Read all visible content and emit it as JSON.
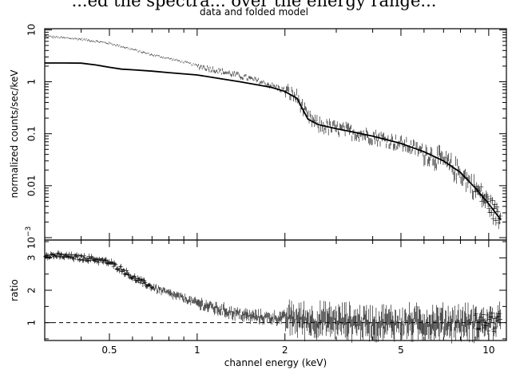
{
  "caption_fragment": "...ed the spectra... over the energy range...",
  "chart_data": [
    {
      "type": "line",
      "panel": "upper",
      "title": "data and folded model",
      "xlabel": "",
      "ylabel": "normalized counts/sec/keV",
      "xscale": "log",
      "yscale": "log",
      "xlim": [
        0.3,
        11.5
      ],
      "ylim": [
        0.0009,
        10.5
      ],
      "yticks": [
        {
          "v": 0.001,
          "label": "10",
          "exp": "−3"
        },
        {
          "v": 0.01,
          "label": "0.01"
        },
        {
          "v": 0.1,
          "label": "0.1"
        },
        {
          "v": 1,
          "label": "1"
        },
        {
          "v": 10,
          "label": "10"
        }
      ],
      "series": [
        {
          "kind": "data",
          "points": [
            [
              0.3,
              7.5
            ],
            [
              0.35,
              7.0
            ],
            [
              0.4,
              6.6
            ],
            [
              0.45,
              6.0
            ],
            [
              0.5,
              5.5
            ],
            [
              0.55,
              4.8
            ],
            [
              0.6,
              4.2
            ],
            [
              0.7,
              3.3
            ],
            [
              0.8,
              2.8
            ],
            [
              0.9,
              2.4
            ],
            [
              1.0,
              2.05
            ],
            [
              1.2,
              1.6
            ],
            [
              1.4,
              1.3
            ],
            [
              1.6,
              1.05
            ],
            [
              1.8,
              0.85
            ],
            [
              2.0,
              0.68
            ],
            [
              2.2,
              0.5
            ],
            [
              2.4,
              0.2
            ],
            [
              2.6,
              0.15
            ],
            [
              3.0,
              0.125
            ],
            [
              3.5,
              0.105
            ],
            [
              4.0,
              0.09
            ],
            [
              5.0,
              0.065
            ],
            [
              6.0,
              0.045
            ],
            [
              7.0,
              0.03
            ],
            [
              8.0,
              0.018
            ],
            [
              9.0,
              0.009
            ],
            [
              10.0,
              0.0045
            ],
            [
              11.0,
              0.0022
            ]
          ]
        },
        {
          "kind": "model",
          "points": [
            [
              0.3,
              2.3
            ],
            [
              0.35,
              2.3
            ],
            [
              0.4,
              2.28
            ],
            [
              0.45,
              2.1
            ],
            [
              0.5,
              1.9
            ],
            [
              0.55,
              1.75
            ],
            [
              0.6,
              1.7
            ],
            [
              0.7,
              1.6
            ],
            [
              0.8,
              1.5
            ],
            [
              1.0,
              1.35
            ],
            [
              1.2,
              1.15
            ],
            [
              1.4,
              1.0
            ],
            [
              1.6,
              0.88
            ],
            [
              1.8,
              0.78
            ],
            [
              2.0,
              0.65
            ],
            [
              2.2,
              0.48
            ],
            [
              2.4,
              0.19
            ],
            [
              2.6,
              0.15
            ],
            [
              3.0,
              0.125
            ],
            [
              3.5,
              0.105
            ],
            [
              4.0,
              0.09
            ],
            [
              5.0,
              0.065
            ],
            [
              6.0,
              0.045
            ],
            [
              7.0,
              0.03
            ],
            [
              8.0,
              0.018
            ],
            [
              9.0,
              0.009
            ],
            [
              10.0,
              0.0045
            ],
            [
              11.0,
              0.0022
            ]
          ]
        }
      ]
    },
    {
      "type": "line",
      "panel": "lower",
      "xlabel": "channel energy (keV)",
      "ylabel": "ratio",
      "xscale": "log",
      "yscale": "linear",
      "xlim": [
        0.3,
        11.5
      ],
      "ylim": [
        0.45,
        3.55
      ],
      "xticks": [
        {
          "v": 0.5,
          "label": "0.5"
        },
        {
          "v": 1,
          "label": "1"
        },
        {
          "v": 2,
          "label": "2"
        },
        {
          "v": 5,
          "label": "5"
        },
        {
          "v": 10,
          "label": "10"
        }
      ],
      "yticks": [
        {
          "v": 1,
          "label": "1"
        },
        {
          "v": 2,
          "label": "2"
        },
        {
          "v": 3,
          "label": "3"
        }
      ],
      "reference_line": 1,
      "series": [
        {
          "kind": "data",
          "points": [
            [
              0.3,
              3.1
            ],
            [
              0.35,
              3.05
            ],
            [
              0.4,
              3.0
            ],
            [
              0.45,
              2.95
            ],
            [
              0.5,
              2.85
            ],
            [
              0.55,
              2.65
            ],
            [
              0.6,
              2.4
            ],
            [
              0.7,
              2.1
            ],
            [
              0.8,
              1.9
            ],
            [
              0.9,
              1.75
            ],
            [
              1.0,
              1.6
            ],
            [
              1.2,
              1.4
            ],
            [
              1.5,
              1.2
            ],
            [
              1.8,
              1.15
            ],
            [
              2.0,
              1.15
            ],
            [
              2.5,
              1.05
            ],
            [
              3.0,
              1.05
            ],
            [
              4.0,
              1.0
            ],
            [
              5.0,
              1.0
            ],
            [
              6.0,
              1.0
            ],
            [
              8.0,
              1.0
            ],
            [
              10.0,
              1.0
            ],
            [
              11.0,
              1.0
            ]
          ]
        }
      ]
    }
  ]
}
